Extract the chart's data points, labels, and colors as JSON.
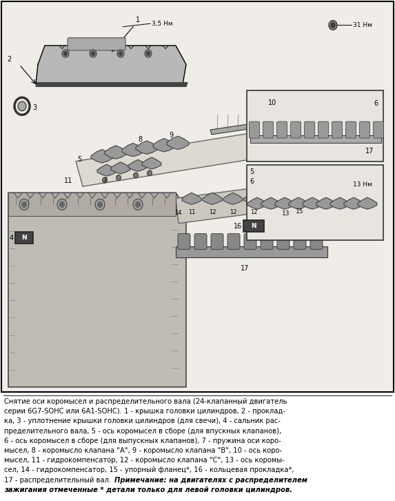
{
  "bg_color": "#ffffff",
  "fig_width": 5.73,
  "fig_height": 7.26,
  "dpi": 100,
  "caption_lines": [
    "Снятие оси коромысел и распределительного вала (24-клапанный двигатель",
    "серии 6G7-SOHC или 6A1-SOHC). 1 - крышка головки цилиндров, 2 - проклад-",
    "ка, 3 - уплотнение крышки головки цилиндров (для свечи), 4 - сальник рас-",
    "пределительного вала, 5 - ось коромысел в сборе (для впускных клапанов),",
    "6 - ось коромысел в сборе (для выпускных клапанов), 7 - пружина оси коро-",
    "мысел, 8 - коромысло клапана \"A\", 9 - коромысло клапана \"B\", 10 - ось коро-",
    "мысел, 11 - гидрокомпенсатор, 12 - коромысло клапана \"C\", 13 - ось коромы-",
    "сел, 14 - гидрокомпенсатор, 15 - упорный фланец*, 16 - кольцевая прокладка*,"
  ],
  "caption_line_last_normal": "17 - распределительный вал. ",
  "caption_note_bold": "Примечание: на двигателях с распределителем",
  "caption_note_italic_line2": "зажигания отмеченные * детали только для левой головки цилиндров.",
  "caption_font_size": 7.2,
  "torque_top": "3,5 Нм",
  "torque_right": "31 Нм",
  "torque_mid": "13 Нм",
  "border_color": "#000000",
  "text_color": "#000000",
  "diagram_bg": "#f0ede8"
}
